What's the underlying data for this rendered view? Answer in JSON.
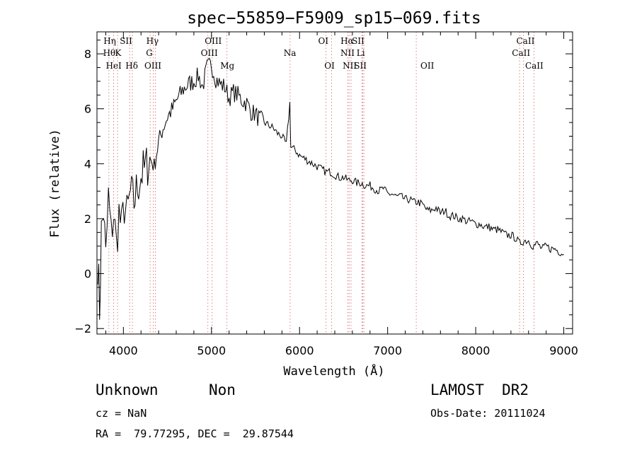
{
  "chart_data": {
    "type": "line",
    "title": "spec−55859−F5909_sp15−069.fits",
    "xlabel": "Wavelength (Å)",
    "ylabel": "Flux (relative)",
    "xlim": [
      3700,
      9100
    ],
    "ylim": [
      -2.2,
      8.8
    ],
    "x_ticks": [
      4000,
      5000,
      6000,
      7000,
      8000,
      9000
    ],
    "x_tick_labels": [
      "4000",
      "5000",
      "6000",
      "7000",
      "8000",
      "9000"
    ],
    "y_ticks": [
      -2,
      0,
      2,
      4,
      6,
      8
    ],
    "y_tick_labels": [
      "−2",
      "0",
      "2",
      "4",
      "6",
      "8"
    ],
    "grid": false,
    "line_color": "#000000",
    "marker_color": "#e08080",
    "series": [
      {
        "x": [
          3710,
          3730,
          3750,
          3775,
          3800,
          3830,
          3860,
          3890,
          3920,
          3950,
          3980,
          4010,
          4040,
          4080,
          4120,
          4160,
          4200,
          4250,
          4300,
          4350,
          4400,
          4450,
          4500,
          4560,
          4620,
          4680,
          4740,
          4800,
          4850,
          4900,
          4950,
          5000,
          5050,
          5100,
          5150,
          5200,
          5250,
          5300,
          5350,
          5400,
          5450,
          5500,
          5550,
          5600,
          5650,
          5700,
          5750,
          5800,
          5850,
          5890,
          5900,
          5950,
          6000,
          6050,
          6100,
          6150,
          6200,
          6250,
          6300,
          6350,
          6400,
          6450,
          6500,
          6550,
          6600,
          6650,
          6700,
          6750,
          6800,
          6850,
          6900,
          6950,
          7000,
          7050,
          7100,
          7150,
          7200,
          7250,
          7300,
          7350,
          7400,
          7450,
          7500,
          7550,
          7600,
          7650,
          7700,
          7750,
          7800,
          7850,
          7900,
          7950,
          8000,
          8050,
          8100,
          8150,
          8200,
          8250,
          8300,
          8350,
          8400,
          8450,
          8500,
          8550,
          8600,
          8650,
          8700,
          8750,
          8800,
          8850,
          8900,
          8950,
          9000
        ],
        "y": [
          0.5,
          -1.3,
          1.5,
          2.3,
          0.5,
          2.8,
          1.4,
          2.2,
          1.0,
          2.2,
          1.6,
          2.5,
          2.1,
          2.9,
          2.6,
          3.2,
          3.6,
          3.8,
          4.2,
          3.9,
          4.8,
          5.3,
          5.7,
          6.0,
          6.4,
          6.7,
          6.9,
          7.0,
          7.2,
          6.8,
          7.5,
          7.6,
          7.1,
          6.9,
          6.8,
          6.4,
          6.6,
          6.5,
          6.3,
          6.2,
          5.9,
          5.8,
          5.6,
          5.5,
          5.4,
          5.3,
          5.1,
          5.0,
          4.7,
          6.2,
          4.6,
          4.5,
          4.3,
          4.2,
          4.1,
          4.0,
          3.9,
          3.8,
          3.7,
          3.7,
          3.6,
          3.5,
          3.5,
          3.4,
          3.4,
          3.3,
          3.3,
          3.2,
          3.2,
          3.1,
          3.0,
          3.1,
          2.9,
          2.9,
          2.8,
          2.8,
          2.7,
          2.7,
          2.6,
          2.6,
          2.5,
          2.3,
          2.3,
          2.4,
          2.2,
          2.3,
          2.1,
          2.1,
          2.0,
          2.0,
          1.9,
          1.9,
          1.8,
          1.8,
          1.7,
          1.7,
          1.6,
          1.6,
          1.5,
          1.4,
          1.4,
          1.3,
          1.1,
          1.2,
          1.2,
          1.0,
          1.1,
          0.9,
          1.0,
          0.9,
          0.9,
          0.8,
          0.7
        ]
      }
    ],
    "line_markers": [
      {
        "x": 3835,
        "label": "Hη",
        "row": 0,
        "label_x": 3845
      },
      {
        "x": 3889,
        "label": "Hθ",
        "row": 1,
        "label_x": 3840
      },
      {
        "x": 3934,
        "label": "K",
        "row": 1,
        "label_x": 3940
      },
      {
        "x": 3889,
        "label": "HeI",
        "row": 2,
        "label_x": 3890
      },
      {
        "x": 4072,
        "label": "SII",
        "row": 0,
        "label_x": 4030
      },
      {
        "x": 4102,
        "label": "Hδ",
        "row": 2,
        "label_x": 4095
      },
      {
        "x": 4340,
        "label": "Hγ",
        "row": 0,
        "label_x": 4330
      },
      {
        "x": 4304,
        "label": "G",
        "row": 1,
        "label_x": 4295
      },
      {
        "x": 4363,
        "label": "OIII",
        "row": 2,
        "label_x": 4335
      },
      {
        "x": 5007,
        "label": "OIII",
        "row": 0,
        "label_x": 5020
      },
      {
        "x": 4959,
        "label": "OIII",
        "row": 1,
        "label_x": 4975
      },
      {
        "x": 5175,
        "label": "Mg",
        "row": 2,
        "label_x": 5180
      },
      {
        "x": 5893,
        "label": "Na",
        "row": 1,
        "label_x": 5890
      },
      {
        "x": 6300,
        "label": "OI",
        "row": 0,
        "label_x": 6270
      },
      {
        "x": 6364,
        "label": "OI",
        "row": 2,
        "label_x": 6340
      },
      {
        "x": 6563,
        "label": "Hα",
        "row": 0,
        "label_x": 6540
      },
      {
        "x": 6717,
        "label": "SII",
        "row": 0,
        "label_x": 6665
      },
      {
        "x": 6548,
        "label": "NII",
        "row": 1,
        "label_x": 6545
      },
      {
        "x": 6708,
        "label": "Li",
        "row": 1,
        "label_x": 6695
      },
      {
        "x": 6584,
        "label": "NII",
        "row": 2,
        "label_x": 6570
      },
      {
        "x": 6731,
        "label": "SII",
        "row": 2,
        "label_x": 6690
      },
      {
        "x": 7325,
        "label": "OII",
        "row": 2,
        "label_x": 7450
      },
      {
        "x": 8542,
        "label": "CaII",
        "row": 0,
        "label_x": 8565
      },
      {
        "x": 8498,
        "label": "CaII",
        "row": 1,
        "label_x": 8515
      },
      {
        "x": 8662,
        "label": "CaII",
        "row": 2,
        "label_x": 8665
      }
    ]
  },
  "info": {
    "object_class": "Unknown",
    "subclass": "Non",
    "survey": "LAMOST  DR2",
    "cz": "cz = NaN",
    "obs_date": "Obs-Date: 20111024",
    "coords": "RA =  79.77295, DEC =  29.87544"
  }
}
